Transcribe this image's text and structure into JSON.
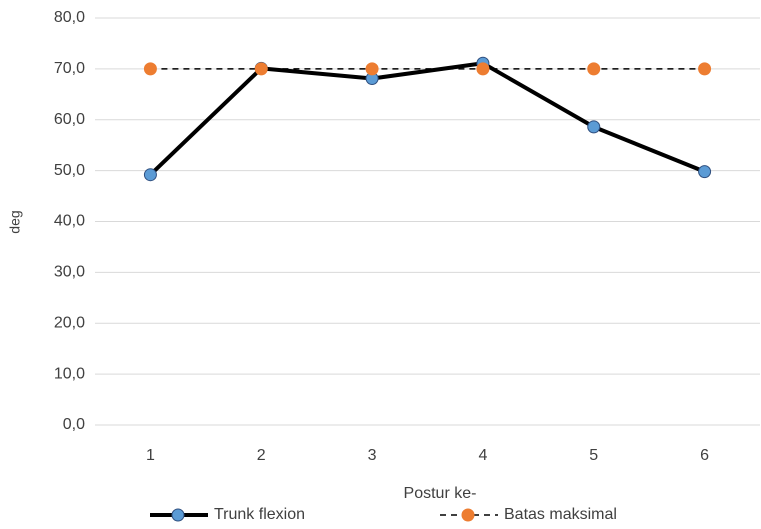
{
  "chart_data": {
    "type": "line",
    "x_label": "Postur ke-",
    "y_label": "deg",
    "categories": [
      "1",
      "2",
      "3",
      "4",
      "5",
      "6"
    ],
    "series": [
      {
        "name": "Trunk flexion",
        "color": "#000000",
        "marker_color": "#5b9bd5",
        "dashed": false,
        "values": [
          49.2,
          70.1,
          68.1,
          71.1,
          58.6,
          49.8
        ]
      },
      {
        "name": "Batas maksimal",
        "color": "#000000",
        "marker_color": "#ed7d31",
        "dashed": true,
        "values": [
          70,
          70,
          70,
          70,
          70,
          70
        ]
      }
    ],
    "ylim": [
      0,
      80
    ],
    "yticks": [
      {
        "value": 0,
        "label": "0,0"
      },
      {
        "value": 10,
        "label": "10,0"
      },
      {
        "value": 20,
        "label": "20,0"
      },
      {
        "value": 30,
        "label": "30,0"
      },
      {
        "value": 40,
        "label": "40,0"
      },
      {
        "value": 50,
        "label": "50,0"
      },
      {
        "value": 60,
        "label": "60,0"
      },
      {
        "value": 70,
        "label": "70,0"
      },
      {
        "value": 80,
        "label": "80,0"
      }
    ],
    "grid": true,
    "legend": "bottom"
  }
}
